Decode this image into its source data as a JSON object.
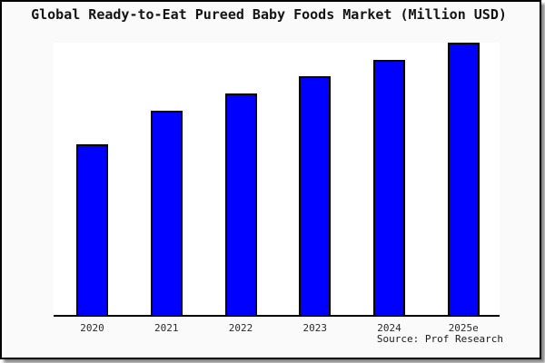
{
  "chart_data": {
    "type": "bar",
    "title": "Global Ready-to-Eat Pureed Baby Foods Market (Million USD)",
    "categories": [
      "2020",
      "2021",
      "2022",
      "2023",
      "2024",
      "2025e"
    ],
    "values": [
      62.8,
      75.1,
      81.4,
      87.7,
      93.7,
      100
    ],
    "value_scale_note": "no y-axis shown; values are relative bar heights with 2025e = 100",
    "xlabel": "",
    "ylabel": "",
    "grid": false,
    "legend": false,
    "bar_color": "#0000ff",
    "bar_border_color": "#000000",
    "plot_background": "#ffffff",
    "canvas_background": "#fafafa"
  },
  "source": {
    "text": "Source: Prof Research"
  }
}
